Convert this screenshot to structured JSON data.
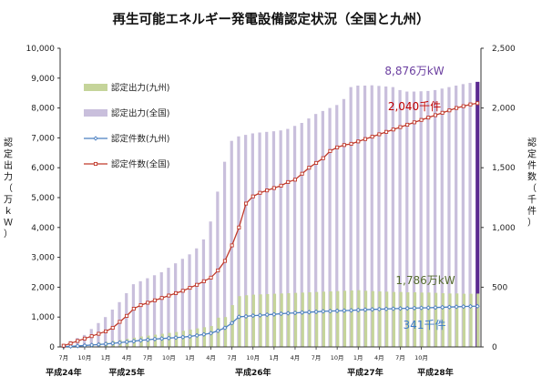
{
  "chart_data": {
    "type": "bar",
    "title": "再生可能エネルギー発電設備認定状況（全国と九州）",
    "ylabel_left": "認定出力（万ｋＷ）",
    "ylabel_right": "認定件数（千件）",
    "ylim_left": [
      0,
      10000
    ],
    "ylim_right": [
      0,
      2500
    ],
    "yticks_left": [
      "0",
      "1,000",
      "2,000",
      "3,000",
      "4,000",
      "5,000",
      "6,000",
      "7,000",
      "8,000",
      "9,000",
      "10,000"
    ],
    "yticks_right": [
      "0",
      "500",
      "1,000",
      "1,500",
      "2,000",
      "2,500"
    ],
    "month_ticks": [
      {
        "i": 0,
        "label": "7月"
      },
      {
        "i": 3,
        "label": "10月"
      },
      {
        "i": 6,
        "label": "1月"
      },
      {
        "i": 9,
        "label": "4月"
      },
      {
        "i": 12,
        "label": "7月"
      },
      {
        "i": 15,
        "label": "10月"
      },
      {
        "i": 18,
        "label": "1月"
      },
      {
        "i": 21,
        "label": "4月"
      },
      {
        "i": 24,
        "label": "7月"
      },
      {
        "i": 27,
        "label": "10月"
      },
      {
        "i": 30,
        "label": "1月"
      },
      {
        "i": 33,
        "label": "4月"
      },
      {
        "i": 36,
        "label": "7月"
      },
      {
        "i": 39,
        "label": "10月"
      },
      {
        "i": 42,
        "label": "1月"
      },
      {
        "i": 45,
        "label": "4月"
      },
      {
        "i": 48,
        "label": "7月"
      },
      {
        "i": 51,
        "label": "10月"
      }
    ],
    "era_labels": [
      {
        "i": 0,
        "label": "平成24年"
      },
      {
        "i": 9,
        "label": "平成25年"
      },
      {
        "i": 27,
        "label": "平成26年"
      },
      {
        "i": 43,
        "label": "平成27年"
      },
      {
        "i": 53,
        "label": "平成28年"
      }
    ],
    "series": [
      {
        "name": "認定出力(九州)",
        "kind": "bar",
        "axis": "left",
        "color": "#c5d49a",
        "values": [
          20,
          40,
          60,
          80,
          110,
          140,
          170,
          200,
          230,
          270,
          310,
          350,
          380,
          410,
          440,
          470,
          500,
          540,
          580,
          620,
          660,
          700,
          980,
          1000,
          1400,
          1700,
          1730,
          1750,
          1760,
          1770,
          1780,
          1790,
          1800,
          1810,
          1820,
          1830,
          1840,
          1850,
          1860,
          1870,
          1880,
          1890,
          1900,
          1880,
          1870,
          1860,
          1850,
          1840,
          1840,
          1830,
          1830,
          1820,
          1820,
          1810,
          1800,
          1790,
          1790,
          1780,
          1780,
          1786
        ]
      },
      {
        "name": "認定出力(全国)",
        "kind": "bar",
        "axis": "left",
        "color": "#c9bfdc",
        "values": [
          100,
          200,
          300,
          400,
          600,
          800,
          1000,
          1250,
          1500,
          1800,
          2100,
          2200,
          2300,
          2400,
          2500,
          2650,
          2800,
          2950,
          3100,
          3300,
          3600,
          4200,
          5200,
          6200,
          6900,
          7050,
          7100,
          7150,
          7180,
          7200,
          7220,
          7250,
          7300,
          7400,
          7500,
          7650,
          7800,
          7900,
          8000,
          8100,
          8300,
          8700,
          8750,
          8750,
          8760,
          8740,
          8720,
          8700,
          8600,
          8550,
          8550,
          8560,
          8570,
          8600,
          8650,
          8700,
          8750,
          8800,
          8840,
          8876
        ]
      },
      {
        "name": "認定件数(九州)",
        "kind": "line",
        "axis": "right",
        "color": "#4a7fc1",
        "values": [
          3,
          5,
          8,
          12,
          16,
          20,
          25,
          30,
          36,
          42,
          48,
          55,
          60,
          66,
          70,
          74,
          78,
          82,
          88,
          96,
          105,
          115,
          135,
          160,
          200,
          252,
          256,
          262,
          265,
          270,
          273,
          278,
          282,
          285,
          288,
          291,
          294,
          298,
          300,
          302,
          304,
          306,
          309,
          312,
          314,
          316,
          318,
          320,
          322,
          323,
          325,
          327,
          328,
          330,
          332,
          334,
          336,
          338,
          340,
          341
        ]
      },
      {
        "name": "認定件数(全国)",
        "kind": "line",
        "axis": "right",
        "color": "#c0392b",
        "values": [
          10,
          30,
          50,
          70,
          90,
          110,
          130,
          160,
          210,
          260,
          320,
          350,
          370,
          390,
          410,
          430,
          450,
          470,
          495,
          520,
          550,
          580,
          640,
          720,
          850,
          1000,
          1200,
          1260,
          1290,
          1310,
          1330,
          1350,
          1380,
          1400,
          1450,
          1500,
          1540,
          1580,
          1640,
          1670,
          1690,
          1700,
          1720,
          1740,
          1760,
          1780,
          1800,
          1820,
          1840,
          1860,
          1880,
          1900,
          1920,
          1940,
          1960,
          1980,
          2000,
          2015,
          2030,
          2040
        ]
      }
    ],
    "annotations": [
      {
        "text": "8,876万kW",
        "series": "認定出力(全国)",
        "color": "#6b3fa0"
      },
      {
        "text": "2,040千件",
        "series": "認定件数(全国)",
        "color": "#c00000"
      },
      {
        "text": "1,786万kW",
        "series": "認定出力(九州)",
        "color": "#556b2f"
      },
      {
        "text": "341千件",
        "series": "認定件数(九州)",
        "color": "#3a7cc9"
      }
    ],
    "legend_position": "top-left",
    "grid": false
  }
}
